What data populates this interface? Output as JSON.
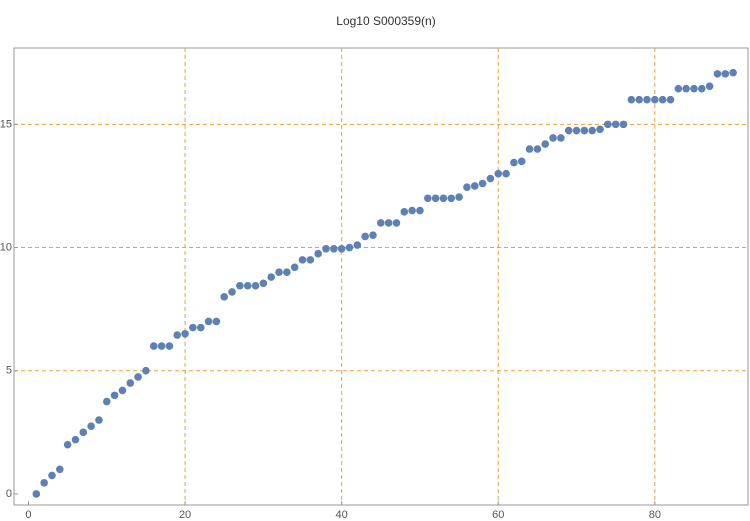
{
  "chart_data": {
    "type": "scatter",
    "title": "Log10 S000359(n)",
    "x": [
      1,
      2,
      3,
      4,
      5,
      6,
      7,
      8,
      9,
      10,
      11,
      12,
      13,
      14,
      15,
      16,
      17,
      18,
      19,
      20,
      21,
      22,
      23,
      24,
      25,
      26,
      27,
      28,
      29,
      30,
      31,
      32,
      33,
      34,
      35,
      36,
      37,
      38,
      39,
      40,
      41,
      42,
      43,
      44,
      45,
      46,
      47,
      48,
      49,
      50,
      51,
      52,
      53,
      54,
      55,
      56,
      57,
      58,
      59,
      60,
      61,
      62,
      63,
      64,
      65,
      66,
      67,
      68,
      69,
      70,
      71,
      72,
      73,
      74,
      75,
      76,
      77,
      78,
      79,
      80,
      81,
      82,
      83,
      84,
      85,
      86,
      87,
      88,
      89,
      90
    ],
    "values": [
      0,
      0.45,
      0.75,
      1.0,
      2.0,
      2.2,
      2.5,
      2.75,
      3.0,
      3.75,
      4.0,
      4.2,
      4.5,
      4.75,
      5.0,
      6.0,
      6.0,
      6.0,
      6.45,
      6.5,
      6.75,
      6.75,
      7.0,
      7.0,
      8.0,
      8.2,
      8.45,
      8.45,
      8.45,
      8.55,
      8.8,
      9.0,
      9.0,
      9.2,
      9.5,
      9.5,
      9.75,
      9.95,
      9.95,
      9.95,
      10.0,
      10.1,
      10.45,
      10.5,
      11.0,
      11.0,
      11.0,
      11.45,
      11.5,
      11.5,
      12.0,
      12.0,
      12.0,
      12.0,
      12.05,
      12.45,
      12.5,
      12.6,
      12.8,
      13.0,
      13.0,
      13.45,
      13.5,
      14.0,
      14.0,
      14.2,
      14.45,
      14.45,
      14.75,
      14.75,
      14.75,
      14.75,
      14.8,
      15.0,
      15.0,
      15.0,
      16.0,
      16.0,
      16.0,
      16.0,
      16.0,
      16.0,
      16.45,
      16.45,
      16.45,
      16.45,
      16.55,
      17.05,
      17.05,
      17.1
    ],
    "color": "#5e81b5",
    "xlim": [
      -1.85,
      91.9
    ],
    "ylim": [
      -0.45,
      18.1
    ],
    "xticks": [
      0,
      20,
      40,
      60,
      80
    ],
    "yticks": [
      0,
      5,
      10,
      15
    ],
    "grid_x": [
      20,
      40,
      60,
      80
    ],
    "grid_y": [
      5,
      10,
      15
    ],
    "grid_color": "#e8a23a"
  }
}
